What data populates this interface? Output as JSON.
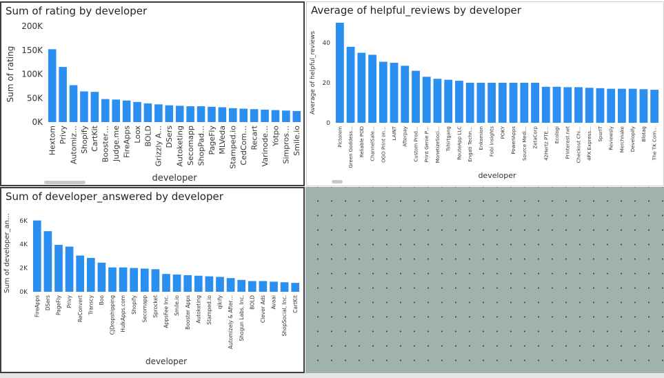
{
  "colors": {
    "bar": "#2b8ff2",
    "text": "#252423",
    "axis_text": "#333333",
    "grid": "#e6e6e6"
  },
  "chart_data": [
    {
      "type": "bar",
      "title": "Sum of rating by developer",
      "xlabel": "developer",
      "ylabel": "Sum of rating",
      "ylim": [
        0,
        200000
      ],
      "yticks": [
        0,
        50000,
        100000,
        150000,
        200000
      ],
      "ytick_labels": [
        "0K",
        "50K",
        "100K",
        "150K",
        "200K"
      ],
      "categories": [
        "Hextom",
        "Privy",
        "Automiz…",
        "Shopify",
        "CartKit",
        "Booster…",
        "Judge.me",
        "FireApps",
        "Loox",
        "BOLD",
        "Grizzly A…",
        "DSers",
        "Autoketing",
        "Secomapp",
        "ShopPad…",
        "PageFly",
        "MLVeda",
        "Stamped.io",
        "CedCom…",
        "Recart",
        "Varinode…",
        "Yotpo",
        "Simpros…",
        "Smile.io"
      ],
      "values": [
        152000,
        115000,
        77000,
        64000,
        63000,
        48000,
        47000,
        45000,
        42000,
        39000,
        37000,
        35000,
        34000,
        33000,
        33000,
        32000,
        31000,
        29000,
        28000,
        27000,
        26000,
        25000,
        24000,
        23000
      ]
    },
    {
      "type": "bar",
      "title": "Average of helpful_reviews by developer",
      "xlabel": "developer",
      "ylabel": "Average of helpful_reviews",
      "ylim": [
        0,
        50
      ],
      "yticks": [
        0,
        20,
        40
      ],
      "ytick_labels": [
        "0",
        "20",
        "40"
      ],
      "categories": [
        "Pictorem",
        "Green Goddess…",
        "Reliable POD",
        "ChannelSale…",
        "OGO Print on…",
        "LAINT",
        "Afterpay",
        "Custom Prod…",
        "Print Genie P…",
        "MonetizeSoci…",
        "Tshirtgang",
        "RouteApp LLC",
        "Engati Techn…",
        "Enkomion",
        "Fobi Insights",
        "POKY",
        "PowerIApps",
        "Source Medi…",
        "ZetaCorp",
        "42Hertz PTE…",
        "Ecologi",
        "Printerest.net",
        "Checkout Chi…",
        "4PX Express…",
        "SpurIT",
        "Reviewsly",
        "Merchnake",
        "Developify",
        "Blotag",
        "The TK Com…"
      ],
      "values": [
        50,
        38,
        35,
        34,
        30.5,
        30,
        28.5,
        26,
        23,
        22,
        21.5,
        21,
        20,
        20,
        20,
        20,
        20,
        20,
        20,
        18,
        18,
        17.8,
        17.8,
        17.5,
        17.3,
        17,
        17,
        17,
        16.8,
        16.5
      ]
    },
    {
      "type": "bar",
      "title": "Sum of developer_answered by developer",
      "xlabel": "developer",
      "ylabel": "Sum of developer_an…",
      "ylim": [
        0,
        6500
      ],
      "yticks": [
        0,
        2000,
        4000,
        6000
      ],
      "ytick_labels": [
        "0K",
        "2K",
        "4K",
        "6K"
      ],
      "categories": [
        "FireApps",
        "DSers",
        "PageFly",
        "Privy",
        "ReConvert",
        "Transcy",
        "Boo",
        "CJDropshipping",
        "HulkApps.com",
        "Shopify",
        "Secomapp",
        "Sprocket",
        "AppsFee Inc.",
        "Smile.io",
        "Booster Apps",
        "Autoketing",
        "Stamped.io",
        "qikify",
        "Automizely & After…",
        "Shogun Labs, Inc.",
        "BOLD",
        "Clever Ads",
        "Avaai",
        "ShopSocial, Inc.",
        "CartKit"
      ],
      "values": [
        6000,
        5100,
        3950,
        3800,
        3050,
        2850,
        2450,
        2050,
        2050,
        2000,
        1950,
        1900,
        1500,
        1450,
        1400,
        1350,
        1300,
        1250,
        1150,
        1000,
        900,
        900,
        850,
        800,
        750
      ]
    }
  ]
}
